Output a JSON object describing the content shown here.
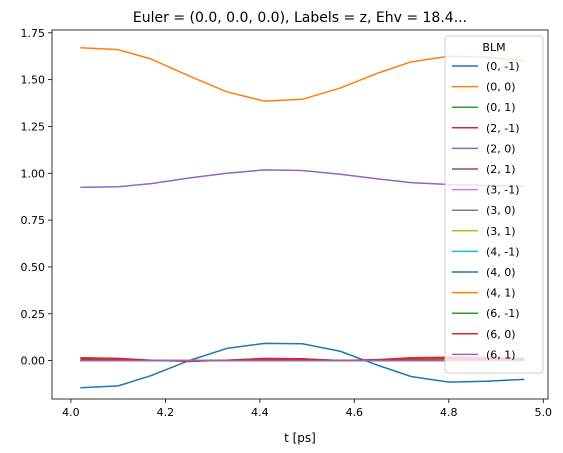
{
  "chart_data": {
    "type": "line",
    "title": "Euler = (0.0, 0.0, 0.0), Labels = z, Ehv = 18.4...",
    "xlabel": "t [ps]",
    "ylabel": "",
    "xlim": [
      3.96,
      5.01
    ],
    "ylim": [
      -0.205,
      1.765
    ],
    "xticks": [
      4.0,
      4.2,
      4.4,
      4.6,
      4.8,
      5.0
    ],
    "xtick_labels": [
      "4.0",
      "4.2",
      "4.4",
      "4.6",
      "4.8",
      "5.0"
    ],
    "yticks": [
      0.0,
      0.25,
      0.5,
      0.75,
      1.0,
      1.25,
      1.5,
      1.75
    ],
    "ytick_labels": [
      "0.00",
      "0.25",
      "0.50",
      "0.75",
      "1.00",
      "1.25",
      "1.50",
      "1.75"
    ],
    "grid": false,
    "legend": {
      "title": "BLM",
      "placement": "upper right"
    },
    "x": [
      4.02,
      4.1,
      4.17,
      4.25,
      4.33,
      4.41,
      4.49,
      4.57,
      4.65,
      4.72,
      4.8,
      4.88,
      4.96
    ],
    "series": [
      {
        "name": "(0, -1)",
        "color": "#1f77b4",
        "values": [
          0.0,
          0.0,
          0.0,
          0.0,
          0.0,
          0.0,
          0.0,
          0.0,
          0.0,
          0.0,
          0.0,
          0.0,
          0.0
        ]
      },
      {
        "name": "(0, 0)",
        "color": "#ff7f0e",
        "values": [
          1.67,
          1.66,
          1.61,
          1.52,
          1.435,
          1.385,
          1.395,
          1.455,
          1.535,
          1.595,
          1.625,
          1.62,
          1.6
        ]
      },
      {
        "name": "(0, 1)",
        "color": "#2ca02c",
        "values": [
          0.0,
          0.0,
          0.0,
          0.0,
          0.0,
          0.0,
          0.0,
          0.0,
          0.0,
          0.0,
          0.0,
          0.0,
          0.0
        ]
      },
      {
        "name": "(2, -1)",
        "color": "#d62728",
        "values": [
          0.015,
          0.012,
          0.002,
          -0.005,
          0.002,
          0.012,
          0.01,
          0.0,
          0.005,
          0.015,
          0.018,
          0.015,
          0.012
        ]
      },
      {
        "name": "(2, 0)",
        "color": "#9467bd",
        "values": [
          0.925,
          0.928,
          0.945,
          0.975,
          1.0,
          1.018,
          1.015,
          0.995,
          0.97,
          0.95,
          0.94,
          0.935,
          0.93
        ]
      },
      {
        "name": "(2, 1)",
        "color": "#8c564b",
        "values": [
          0.0,
          0.0,
          0.0,
          0.0,
          0.0,
          0.0,
          0.0,
          0.0,
          0.0,
          0.0,
          0.0,
          0.0,
          0.0
        ]
      },
      {
        "name": "(3, -1)",
        "color": "#e377c2",
        "values": [
          0.0,
          0.0,
          0.0,
          0.0,
          0.0,
          0.0,
          0.0,
          0.0,
          0.0,
          0.0,
          0.0,
          0.0,
          0.0
        ]
      },
      {
        "name": "(3, 0)",
        "color": "#7f7f7f",
        "values": [
          0.0,
          0.0,
          0.0,
          0.0,
          0.0,
          0.0,
          0.0,
          0.0,
          0.0,
          0.0,
          0.0,
          0.0,
          0.0
        ]
      },
      {
        "name": "(3, 1)",
        "color": "#bcbd22",
        "values": [
          0.0,
          0.0,
          0.0,
          0.0,
          0.0,
          0.0,
          0.0,
          0.0,
          0.0,
          0.0,
          0.0,
          0.0,
          0.0
        ]
      },
      {
        "name": "(4, -1)",
        "color": "#17becf",
        "values": [
          0.0,
          0.0,
          0.0,
          0.0,
          0.0,
          0.0,
          0.0,
          0.0,
          0.0,
          0.0,
          0.0,
          0.0,
          0.0
        ]
      },
      {
        "name": "(4, 0)",
        "color": "#1f77b4",
        "values": [
          -0.145,
          -0.135,
          -0.08,
          0.0,
          0.065,
          0.092,
          0.09,
          0.05,
          -0.025,
          -0.085,
          -0.115,
          -0.11,
          -0.1
        ]
      },
      {
        "name": "(4, 1)",
        "color": "#ff7f0e",
        "values": [
          0.0,
          0.0,
          0.0,
          0.0,
          0.0,
          0.0,
          0.0,
          0.0,
          0.0,
          0.0,
          0.0,
          0.0,
          0.0
        ]
      },
      {
        "name": "(6, -1)",
        "color": "#2ca02c",
        "values": [
          0.0,
          0.0,
          0.0,
          0.0,
          0.0,
          0.0,
          0.0,
          0.0,
          0.0,
          0.0,
          0.0,
          0.0,
          0.0
        ]
      },
      {
        "name": "(6, 0)",
        "color": "#d62728",
        "values": [
          0.008,
          0.006,
          0.001,
          -0.002,
          0.002,
          0.008,
          0.006,
          0.001,
          0.003,
          0.008,
          0.01,
          0.008,
          0.007
        ]
      },
      {
        "name": "(6, 1)",
        "color": "#9467bd",
        "values": [
          0.0,
          0.0,
          0.0,
          0.0,
          0.0,
          0.0,
          0.0,
          0.0,
          0.0,
          0.0,
          0.0,
          0.0,
          0.0
        ]
      }
    ]
  }
}
